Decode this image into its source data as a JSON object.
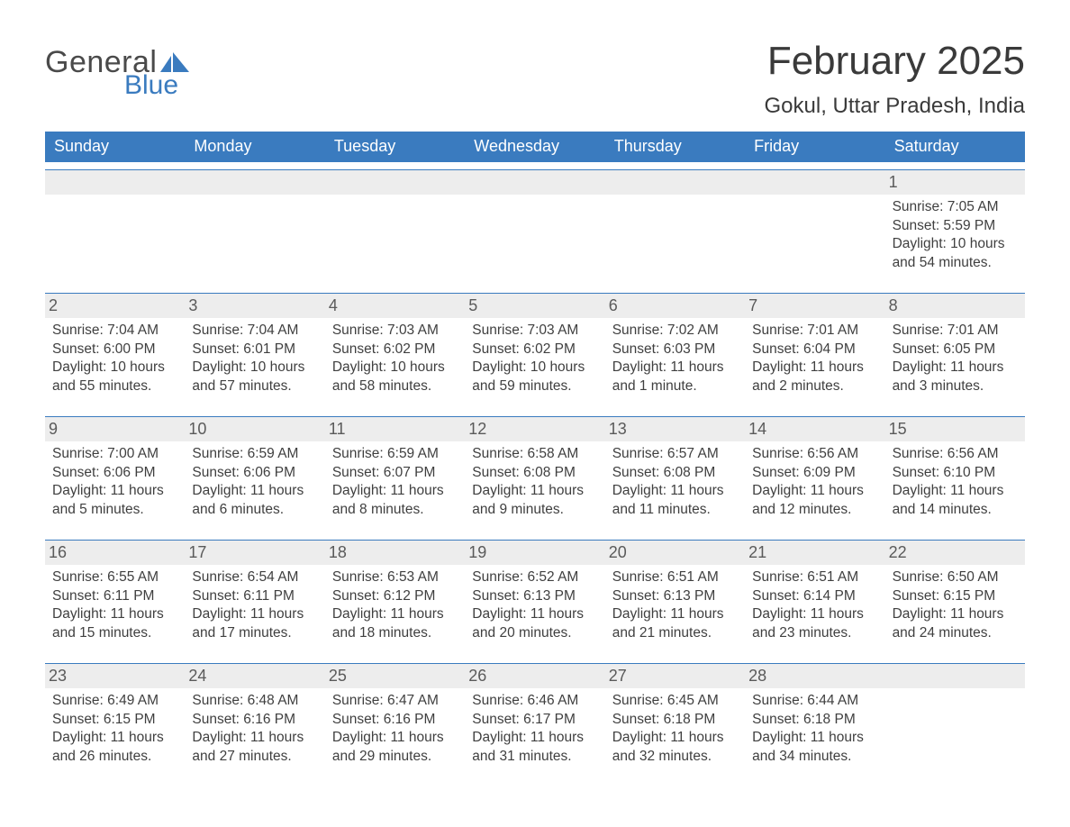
{
  "brand": {
    "word1": "General",
    "word2": "Blue"
  },
  "colors": {
    "header_bg": "#3a7bbf",
    "header_text": "#ffffff",
    "daynum_bg": "#ededed",
    "text": "#3a3a3a",
    "sep": "#3a7bbf",
    "page_bg": "#ffffff"
  },
  "title": "February 2025",
  "location": "Gokul, Uttar Pradesh, India",
  "dow": [
    "Sunday",
    "Monday",
    "Tuesday",
    "Wednesday",
    "Thursday",
    "Friday",
    "Saturday"
  ],
  "first_day_index": 6,
  "days": [
    {
      "n": 1,
      "sunrise": "7:05 AM",
      "sunset": "5:59 PM",
      "daylight": "10 hours and 54 minutes."
    },
    {
      "n": 2,
      "sunrise": "7:04 AM",
      "sunset": "6:00 PM",
      "daylight": "10 hours and 55 minutes."
    },
    {
      "n": 3,
      "sunrise": "7:04 AM",
      "sunset": "6:01 PM",
      "daylight": "10 hours and 57 minutes."
    },
    {
      "n": 4,
      "sunrise": "7:03 AM",
      "sunset": "6:02 PM",
      "daylight": "10 hours and 58 minutes."
    },
    {
      "n": 5,
      "sunrise": "7:03 AM",
      "sunset": "6:02 PM",
      "daylight": "10 hours and 59 minutes."
    },
    {
      "n": 6,
      "sunrise": "7:02 AM",
      "sunset": "6:03 PM",
      "daylight": "11 hours and 1 minute."
    },
    {
      "n": 7,
      "sunrise": "7:01 AM",
      "sunset": "6:04 PM",
      "daylight": "11 hours and 2 minutes."
    },
    {
      "n": 8,
      "sunrise": "7:01 AM",
      "sunset": "6:05 PM",
      "daylight": "11 hours and 3 minutes."
    },
    {
      "n": 9,
      "sunrise": "7:00 AM",
      "sunset": "6:06 PM",
      "daylight": "11 hours and 5 minutes."
    },
    {
      "n": 10,
      "sunrise": "6:59 AM",
      "sunset": "6:06 PM",
      "daylight": "11 hours and 6 minutes."
    },
    {
      "n": 11,
      "sunrise": "6:59 AM",
      "sunset": "6:07 PM",
      "daylight": "11 hours and 8 minutes."
    },
    {
      "n": 12,
      "sunrise": "6:58 AM",
      "sunset": "6:08 PM",
      "daylight": "11 hours and 9 minutes."
    },
    {
      "n": 13,
      "sunrise": "6:57 AM",
      "sunset": "6:08 PM",
      "daylight": "11 hours and 11 minutes."
    },
    {
      "n": 14,
      "sunrise": "6:56 AM",
      "sunset": "6:09 PM",
      "daylight": "11 hours and 12 minutes."
    },
    {
      "n": 15,
      "sunrise": "6:56 AM",
      "sunset": "6:10 PM",
      "daylight": "11 hours and 14 minutes."
    },
    {
      "n": 16,
      "sunrise": "6:55 AM",
      "sunset": "6:11 PM",
      "daylight": "11 hours and 15 minutes."
    },
    {
      "n": 17,
      "sunrise": "6:54 AM",
      "sunset": "6:11 PM",
      "daylight": "11 hours and 17 minutes."
    },
    {
      "n": 18,
      "sunrise": "6:53 AM",
      "sunset": "6:12 PM",
      "daylight": "11 hours and 18 minutes."
    },
    {
      "n": 19,
      "sunrise": "6:52 AM",
      "sunset": "6:13 PM",
      "daylight": "11 hours and 20 minutes."
    },
    {
      "n": 20,
      "sunrise": "6:51 AM",
      "sunset": "6:13 PM",
      "daylight": "11 hours and 21 minutes."
    },
    {
      "n": 21,
      "sunrise": "6:51 AM",
      "sunset": "6:14 PM",
      "daylight": "11 hours and 23 minutes."
    },
    {
      "n": 22,
      "sunrise": "6:50 AM",
      "sunset": "6:15 PM",
      "daylight": "11 hours and 24 minutes."
    },
    {
      "n": 23,
      "sunrise": "6:49 AM",
      "sunset": "6:15 PM",
      "daylight": "11 hours and 26 minutes."
    },
    {
      "n": 24,
      "sunrise": "6:48 AM",
      "sunset": "6:16 PM",
      "daylight": "11 hours and 27 minutes."
    },
    {
      "n": 25,
      "sunrise": "6:47 AM",
      "sunset": "6:16 PM",
      "daylight": "11 hours and 29 minutes."
    },
    {
      "n": 26,
      "sunrise": "6:46 AM",
      "sunset": "6:17 PM",
      "daylight": "11 hours and 31 minutes."
    },
    {
      "n": 27,
      "sunrise": "6:45 AM",
      "sunset": "6:18 PM",
      "daylight": "11 hours and 32 minutes."
    },
    {
      "n": 28,
      "sunrise": "6:44 AM",
      "sunset": "6:18 PM",
      "daylight": "11 hours and 34 minutes."
    }
  ],
  "labels": {
    "sunrise": "Sunrise: ",
    "sunset": "Sunset: ",
    "daylight": "Daylight: "
  }
}
